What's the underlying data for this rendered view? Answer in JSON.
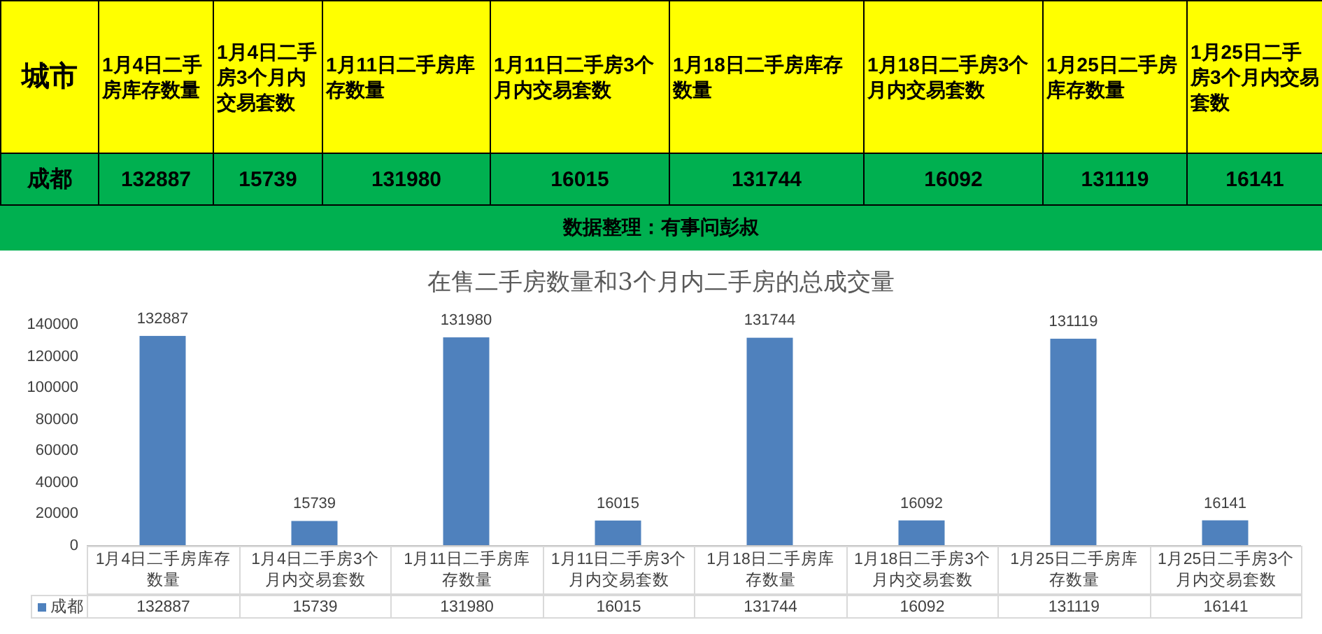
{
  "chart_data": [
    {
      "type": "other",
      "categories": [
        "城市",
        "1月4日二手房库存数量",
        "1月4日二手房3个月内交易套数",
        "1月11日二手房库存数量",
        "1月11日二手房3个月内交易套数",
        "1月18日二手房库存数量",
        "1月18日二手房3个月内交易套数",
        "1月25日二手房库存数量",
        "1月25日二手房3个月内交易套数"
      ],
      "cell_labels": [
        [
          "成都",
          "132887",
          "15739",
          "131980",
          "16015",
          "131744",
          "16092",
          "131119",
          "16141"
        ]
      ],
      "annotations": [
        "数据整理：有事问彭叔"
      ]
    },
    {
      "type": "bar",
      "title": "在售二手房数量和3个月内二手房的总成交量",
      "categories": [
        "1月4日二手房库存数量",
        "1月4日二手房3个月内交易套数",
        "1月11日二手房库存数量",
        "1月11日二手房3个月内交易套数",
        "1月18日二手房库存数量",
        "1月18日二手房3个月内交易套数",
        "1月25日二手房库存数量",
        "1月25日二手房3个月内交易套数"
      ],
      "series": [
        {
          "name": "成都",
          "color": "#4f81bd",
          "values": [
            132887,
            15739,
            131980,
            16015,
            131744,
            16092,
            131119,
            16141
          ]
        }
      ],
      "ylim": [
        0,
        140000
      ],
      "yticks": [
        0,
        20000,
        40000,
        60000,
        80000,
        100000,
        120000,
        140000
      ],
      "grid": false,
      "legend": "bottom",
      "data_labels": true
    }
  ]
}
